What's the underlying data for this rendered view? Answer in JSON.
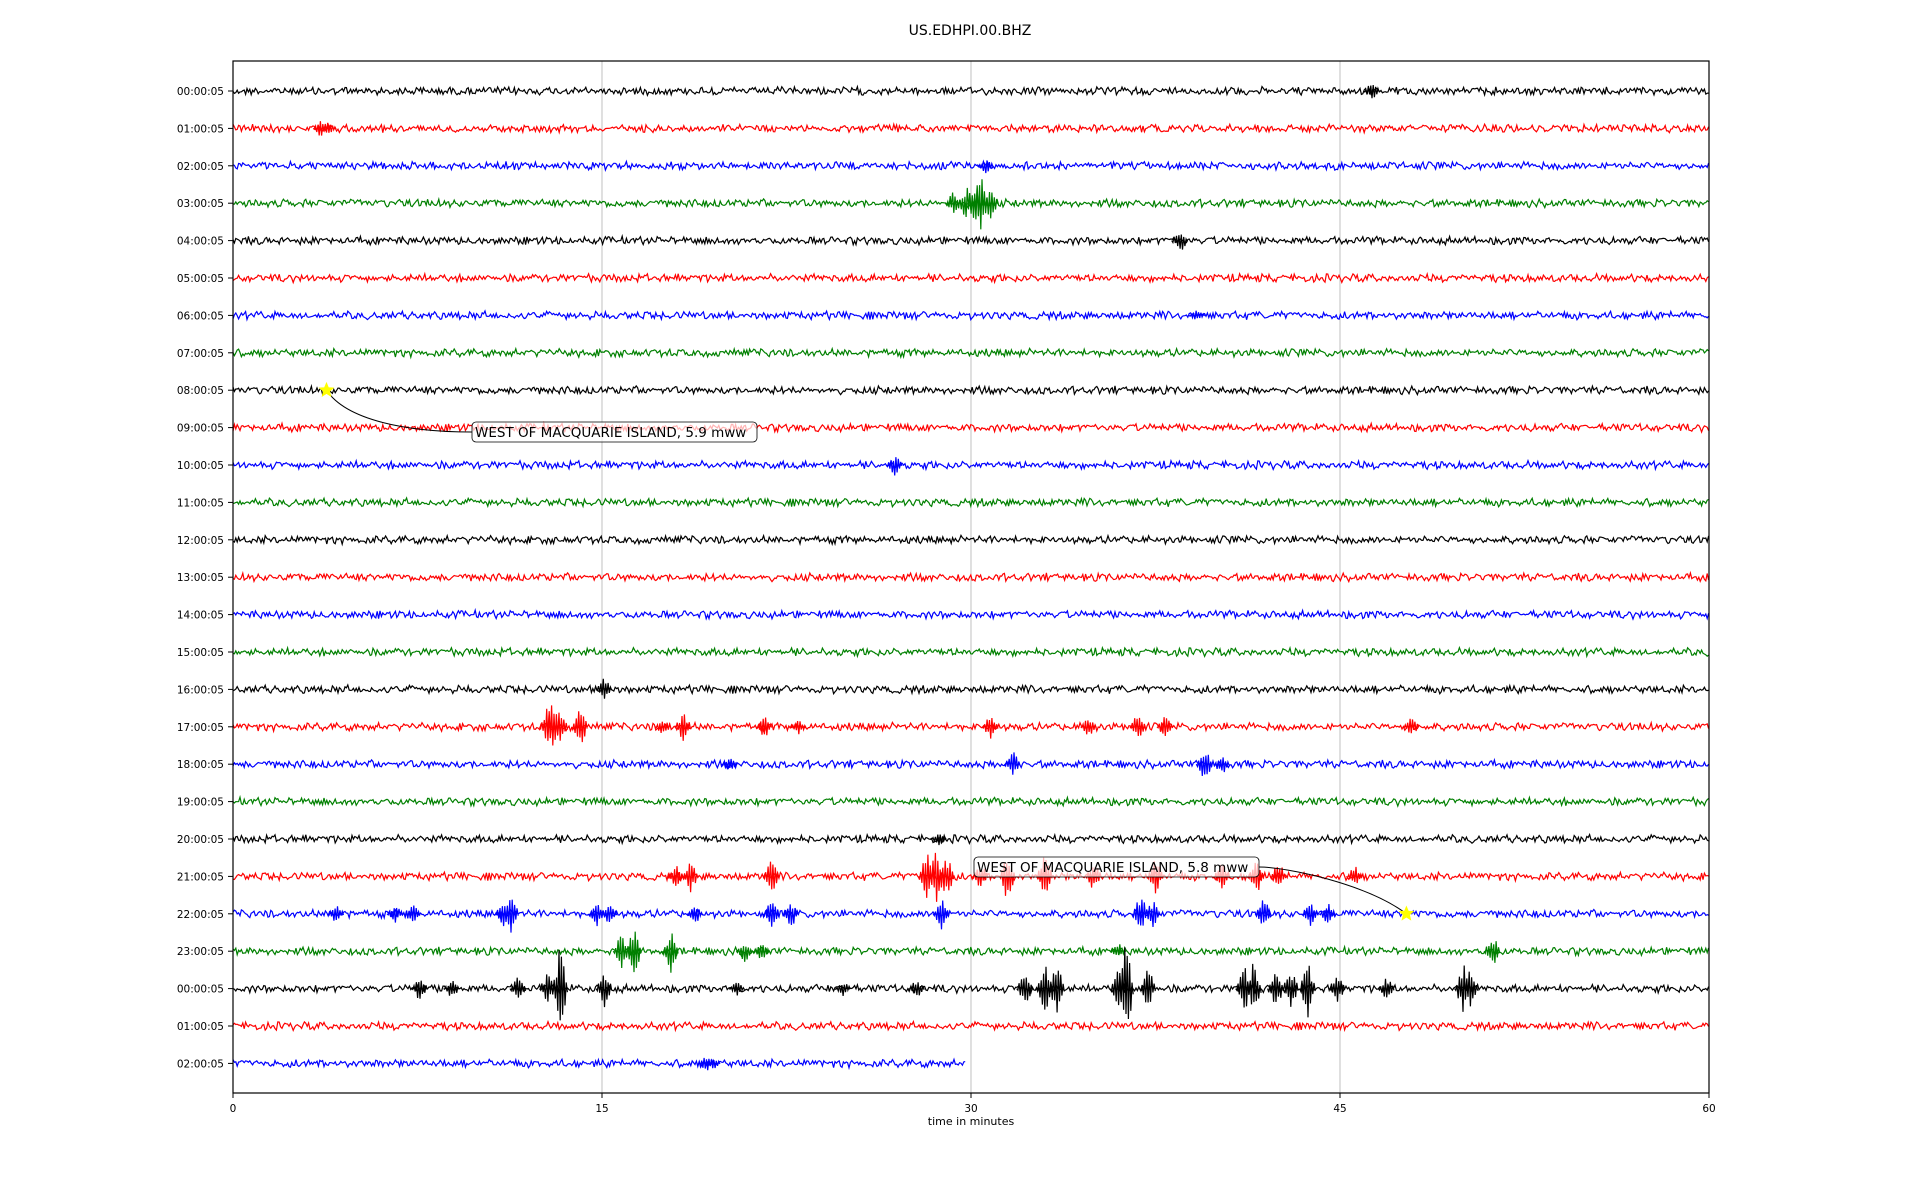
{
  "chart_data": {
    "type": "line",
    "title": "US.EDHPI.00.BHZ",
    "xlabel": "time in minutes",
    "ylabel": "",
    "xlim": [
      0,
      60
    ],
    "x_ticks": [
      0,
      15,
      30,
      45,
      60
    ],
    "grid": "vertical lines at 15, 30, 45",
    "legend": "none",
    "colors": [
      "#000000",
      "#ff0000",
      "#0000ff",
      "#008000"
    ],
    "rows": [
      {
        "label": "00:00:05",
        "color": "#000000",
        "end_minute": 60,
        "spikes": [
          [
            46.3,
            9
          ]
        ]
      },
      {
        "label": "01:00:05",
        "color": "#ff0000",
        "end_minute": 60,
        "spikes": [
          [
            3.6,
            10
          ],
          [
            3.9,
            8
          ]
        ]
      },
      {
        "label": "02:00:05",
        "color": "#0000ff",
        "end_minute": 60,
        "spikes": [
          [
            30.6,
            8
          ]
        ]
      },
      {
        "label": "03:00:05",
        "color": "#008000",
        "end_minute": 60,
        "spikes": [
          [
            29.3,
            14
          ],
          [
            29.8,
            18
          ],
          [
            30.2,
            28
          ],
          [
            30.4,
            38
          ],
          [
            30.8,
            16
          ]
        ]
      },
      {
        "label": "04:00:05",
        "color": "#000000",
        "end_minute": 60,
        "spikes": [
          [
            38.5,
            14
          ]
        ]
      },
      {
        "label": "05:00:05",
        "color": "#ff0000",
        "end_minute": 60,
        "spikes": []
      },
      {
        "label": "06:00:05",
        "color": "#0000ff",
        "end_minute": 60,
        "spikes": [
          [
            39.2,
            6
          ]
        ]
      },
      {
        "label": "07:00:05",
        "color": "#008000",
        "end_minute": 60,
        "spikes": []
      },
      {
        "label": "08:00:05",
        "color": "#000000",
        "end_minute": 60,
        "spikes": []
      },
      {
        "label": "09:00:05",
        "color": "#ff0000",
        "end_minute": 60,
        "spikes": []
      },
      {
        "label": "10:00:05",
        "color": "#0000ff",
        "end_minute": 60,
        "spikes": [
          [
            26.9,
            12
          ]
        ]
      },
      {
        "label": "11:00:05",
        "color": "#008000",
        "end_minute": 60,
        "spikes": []
      },
      {
        "label": "12:00:05",
        "color": "#000000",
        "end_minute": 60,
        "spikes": []
      },
      {
        "label": "13:00:05",
        "color": "#ff0000",
        "end_minute": 60,
        "spikes": []
      },
      {
        "label": "14:00:05",
        "color": "#0000ff",
        "end_minute": 60,
        "spikes": []
      },
      {
        "label": "15:00:05",
        "color": "#008000",
        "end_minute": 60,
        "spikes": []
      },
      {
        "label": "16:00:05",
        "color": "#000000",
        "end_minute": 60,
        "spikes": [
          [
            15.1,
            14
          ]
        ]
      },
      {
        "label": "17:00:05",
        "color": "#ff0000",
        "end_minute": 60,
        "spikes": [
          [
            12.8,
            22
          ],
          [
            13.0,
            30
          ],
          [
            13.3,
            20
          ],
          [
            14.1,
            24
          ],
          [
            17.5,
            10
          ],
          [
            18.3,
            16
          ],
          [
            21.6,
            12
          ],
          [
            23.0,
            8
          ],
          [
            30.8,
            14
          ],
          [
            34.8,
            12
          ],
          [
            36.8,
            16
          ],
          [
            37.9,
            12
          ],
          [
            47.9,
            10
          ]
        ]
      },
      {
        "label": "18:00:05",
        "color": "#0000ff",
        "end_minute": 60,
        "spikes": [
          [
            20.2,
            8
          ],
          [
            31.7,
            14
          ],
          [
            39.5,
            18
          ],
          [
            40.2,
            12
          ]
        ]
      },
      {
        "label": "19:00:05",
        "color": "#008000",
        "end_minute": 60,
        "spikes": []
      },
      {
        "label": "20:00:05",
        "color": "#000000",
        "end_minute": 60,
        "spikes": [
          [
            28.7,
            6
          ]
        ]
      },
      {
        "label": "21:00:05",
        "color": "#ff0000",
        "end_minute": 60,
        "spikes": [
          [
            18.0,
            12
          ],
          [
            18.6,
            16
          ],
          [
            21.9,
            20
          ],
          [
            28.2,
            26
          ],
          [
            28.6,
            30
          ],
          [
            29.0,
            24
          ],
          [
            30.4,
            14
          ],
          [
            31.5,
            28
          ],
          [
            33.0,
            22
          ],
          [
            35.0,
            16
          ],
          [
            37.5,
            18
          ],
          [
            40.2,
            14
          ],
          [
            41.6,
            20
          ],
          [
            42.5,
            16
          ],
          [
            45.6,
            12
          ]
        ]
      },
      {
        "label": "22:00:05",
        "color": "#0000ff",
        "end_minute": 60,
        "spikes": [
          [
            4.2,
            10
          ],
          [
            6.6,
            10
          ],
          [
            7.3,
            12
          ],
          [
            11.0,
            14
          ],
          [
            11.3,
            20
          ],
          [
            14.8,
            14
          ],
          [
            15.3,
            12
          ],
          [
            18.8,
            10
          ],
          [
            21.9,
            18
          ],
          [
            22.7,
            14
          ],
          [
            28.8,
            16
          ],
          [
            36.9,
            20
          ],
          [
            37.4,
            14
          ],
          [
            41.9,
            16
          ],
          [
            43.8,
            14
          ],
          [
            44.5,
            12
          ]
        ]
      },
      {
        "label": "23:00:05",
        "color": "#008000",
        "end_minute": 60,
        "spikes": [
          [
            15.8,
            20
          ],
          [
            16.3,
            26
          ],
          [
            17.8,
            24
          ],
          [
            20.8,
            12
          ],
          [
            21.5,
            10
          ],
          [
            36.0,
            8
          ],
          [
            51.2,
            18
          ]
        ]
      },
      {
        "label": "00:00:05",
        "color": "#000000",
        "end_minute": 60,
        "spikes": [
          [
            7.6,
            14
          ],
          [
            8.9,
            10
          ],
          [
            11.6,
            16
          ],
          [
            12.8,
            18
          ],
          [
            13.3,
            46
          ],
          [
            15.1,
            20
          ],
          [
            20.5,
            8
          ],
          [
            24.8,
            8
          ],
          [
            27.8,
            10
          ],
          [
            32.2,
            20
          ],
          [
            33.0,
            26
          ],
          [
            33.5,
            28
          ],
          [
            36.0,
            26
          ],
          [
            36.3,
            52
          ],
          [
            37.2,
            22
          ],
          [
            41.1,
            26
          ],
          [
            41.5,
            30
          ],
          [
            42.4,
            26
          ],
          [
            43.0,
            22
          ],
          [
            43.7,
            30
          ],
          [
            44.9,
            18
          ],
          [
            46.9,
            12
          ],
          [
            50.0,
            28
          ],
          [
            50.3,
            20
          ]
        ]
      },
      {
        "label": "01:00:05",
        "color": "#ff0000",
        "end_minute": 60,
        "spikes": []
      },
      {
        "label": "02:00:05",
        "color": "#0000ff",
        "end_minute": 29.8,
        "spikes": [
          [
            19.2,
            10
          ],
          [
            19.5,
            8
          ]
        ]
      }
    ],
    "events": [
      {
        "label": "WEST OF MACQUARIE ISLAND, 5.9 mww",
        "row": 8,
        "minute": 3.8
      },
      {
        "label": "WEST OF MACQUARIE ISLAND, 5.8 mww",
        "row": 22,
        "minute": 47.7
      }
    ]
  }
}
